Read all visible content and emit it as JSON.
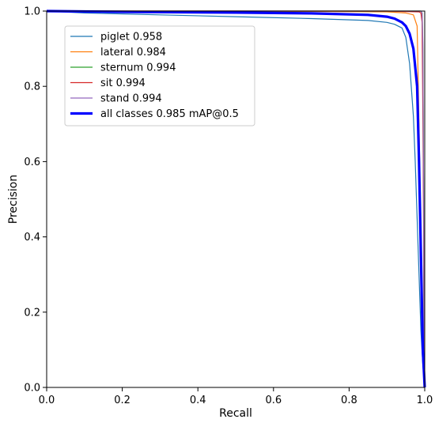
{
  "chart_data": {
    "type": "line",
    "title": "",
    "xlabel": "Recall",
    "ylabel": "Precision",
    "xlim": [
      0,
      1
    ],
    "ylim": [
      0,
      1
    ],
    "xticks": [
      "0.0",
      "0.2",
      "0.4",
      "0.6",
      "0.8",
      "1.0"
    ],
    "yticks": [
      "0.0",
      "0.2",
      "0.4",
      "0.6",
      "0.8",
      "1.0"
    ],
    "grid": false,
    "legend_position": "top-left",
    "series": [
      {
        "name": "piglet 0.958",
        "color": "#1f77b4",
        "x": [
          0,
          0.1,
          0.3,
          0.5,
          0.7,
          0.85,
          0.9,
          0.92,
          0.94,
          0.95,
          0.96,
          0.97,
          0.975,
          0.98,
          0.985,
          0.99,
          0.995,
          1.0
        ],
        "y": [
          1.0,
          0.995,
          0.99,
          0.985,
          0.98,
          0.975,
          0.97,
          0.965,
          0.955,
          0.93,
          0.86,
          0.72,
          0.6,
          0.45,
          0.3,
          0.15,
          0.06,
          0.0
        ]
      },
      {
        "name": "lateral 0.984",
        "color": "#ff7f0e",
        "x": [
          0,
          0.5,
          0.9,
          0.95,
          0.97,
          0.98,
          0.985,
          0.99,
          0.995,
          1.0
        ],
        "y": [
          1.0,
          1.0,
          0.998,
          0.995,
          0.99,
          0.96,
          0.7,
          0.4,
          0.15,
          0.0
        ]
      },
      {
        "name": "sternum 0.994",
        "color": "#2ca02c",
        "x": [
          0,
          0.9,
          0.99,
          0.993,
          0.995,
          0.997,
          0.998,
          1.0
        ],
        "y": [
          1.0,
          1.0,
          1.0,
          0.995,
          0.9,
          0.5,
          0.1,
          0.0
        ]
      },
      {
        "name": "sit 0.994",
        "color": "#d62728",
        "x": [
          0,
          0.9,
          0.985,
          0.99,
          0.993,
          0.996,
          0.998,
          1.0
        ],
        "y": [
          1.0,
          1.0,
          0.998,
          0.995,
          0.97,
          0.6,
          0.2,
          0.0
        ]
      },
      {
        "name": "stand 0.994",
        "color": "#9467bd",
        "x": [
          0,
          0.9,
          0.99,
          0.993,
          0.995,
          0.997,
          0.998,
          1.0
        ],
        "y": [
          1.0,
          1.0,
          1.0,
          0.995,
          0.92,
          0.5,
          0.15,
          0.0
        ]
      },
      {
        "name": "all classes 0.985 mAP@0.5",
        "color": "#0000ff",
        "x": [
          0,
          0.2,
          0.5,
          0.7,
          0.85,
          0.9,
          0.92,
          0.94,
          0.95,
          0.96,
          0.97,
          0.98,
          0.985,
          0.99,
          0.995,
          1.0
        ],
        "y": [
          1.0,
          0.998,
          0.996,
          0.994,
          0.99,
          0.985,
          0.98,
          0.97,
          0.96,
          0.94,
          0.9,
          0.8,
          0.6,
          0.35,
          0.1,
          0.0
        ]
      }
    ]
  }
}
